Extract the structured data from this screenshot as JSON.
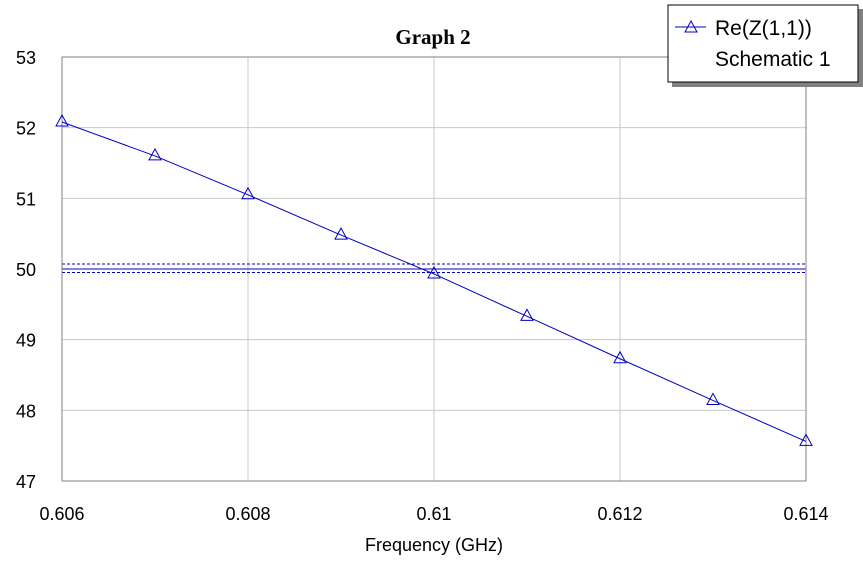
{
  "chart_data": {
    "type": "line",
    "title": "Graph 2",
    "xlabel": "Frequency (GHz)",
    "ylabel": "",
    "xlim": [
      0.606,
      0.614
    ],
    "ylim": [
      47,
      53
    ],
    "xticks": [
      "0.606",
      "0.608",
      "0.61",
      "0.612",
      "0.614"
    ],
    "xtick_values": [
      0.606,
      0.608,
      0.61,
      0.612,
      0.614
    ],
    "yticks": [
      "47",
      "48",
      "49",
      "50",
      "51",
      "52",
      "53"
    ],
    "ytick_values": [
      47,
      48,
      49,
      50,
      51,
      52,
      53
    ],
    "grid": true,
    "legend_position": "top-right",
    "series": [
      {
        "name": "Re(Z(1,1))",
        "source": "Schematic 1",
        "color": "#0000c0",
        "marker": "triangle",
        "x": [
          0.606,
          0.607,
          0.608,
          0.609,
          0.61,
          0.611,
          0.612,
          0.613,
          0.614
        ],
        "y": [
          52.08,
          51.6,
          51.05,
          50.48,
          49.93,
          49.33,
          48.73,
          48.14,
          47.56
        ]
      }
    ],
    "reference_lines": {
      "color": "#0000c0",
      "solid": [
        50.0
      ],
      "dashed": [
        49.95,
        50.07
      ]
    }
  }
}
